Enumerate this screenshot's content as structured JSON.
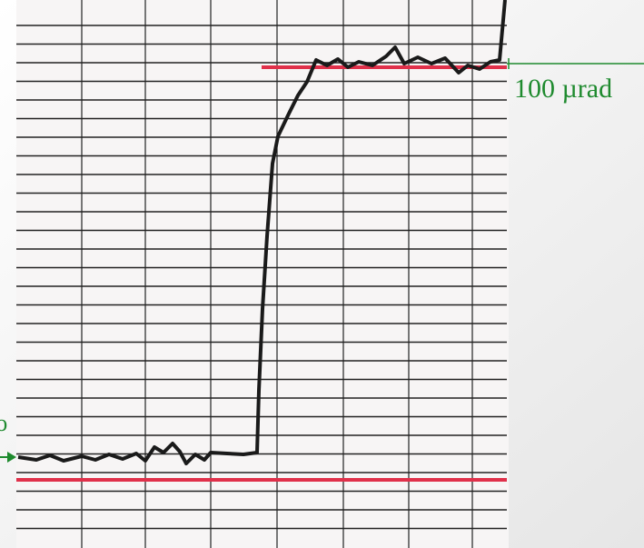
{
  "annotations": {
    "scale_label": "100 µrad",
    "left_label": "to"
  }
}
